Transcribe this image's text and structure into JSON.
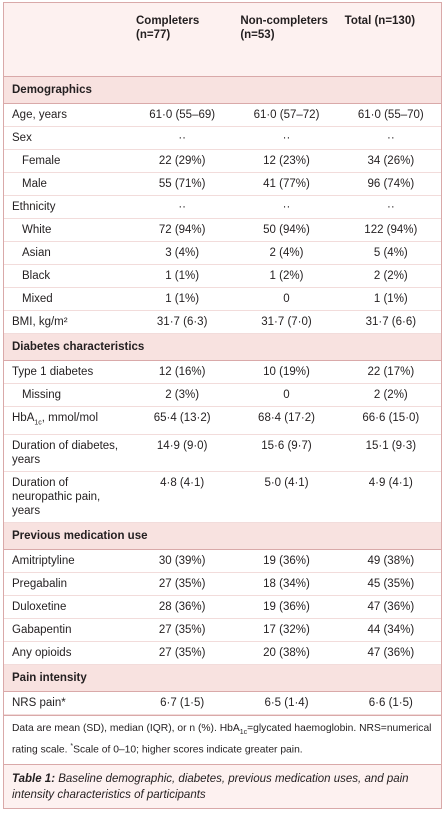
{
  "header": {
    "columns": [
      "Completers (n=77)",
      "Non-completers (n=53)",
      "Total (n=130)"
    ]
  },
  "table": {
    "sections": [
      {
        "title": "Demographics",
        "rows": [
          {
            "label": "Age, years",
            "values": [
              "61·0 (55–69)",
              "61·0 (57–72)",
              "61·0 (55–70)"
            ]
          },
          {
            "label": "Sex",
            "values": [
              "··",
              "··",
              "··"
            ]
          },
          {
            "label": "Female",
            "indent": true,
            "values": [
              "22 (29%)",
              "12 (23%)",
              "34 (26%)"
            ]
          },
          {
            "label": "Male",
            "indent": true,
            "values": [
              "55 (71%)",
              "41 (77%)",
              "96 (74%)"
            ]
          },
          {
            "label": "Ethnicity",
            "values": [
              "··",
              "··",
              "··"
            ]
          },
          {
            "label": "White",
            "indent": true,
            "values": [
              "72 (94%)",
              "50 (94%)",
              "122 (94%)"
            ]
          },
          {
            "label": "Asian",
            "indent": true,
            "values": [
              "3 (4%)",
              "2 (4%)",
              "5 (4%)"
            ]
          },
          {
            "label": "Black",
            "indent": true,
            "values": [
              "1 (1%)",
              "1 (2%)",
              "2 (2%)"
            ]
          },
          {
            "label": "Mixed",
            "indent": true,
            "values": [
              "1 (1%)",
              "0",
              "1 (1%)"
            ]
          },
          {
            "label": "BMI, kg/m²",
            "values": [
              "31·7 (6·3)",
              "31·7 (7·0)",
              "31·7 (6·6)"
            ]
          }
        ]
      },
      {
        "title": "Diabetes characteristics",
        "rows": [
          {
            "label": "Type 1 diabetes",
            "values": [
              "12 (16%)",
              "10 (19%)",
              "22 (17%)"
            ]
          },
          {
            "label": "Missing",
            "indent": true,
            "values": [
              "2 (3%)",
              "0",
              "2 (2%)"
            ]
          },
          {
            "label_parts": [
              {
                "text": "HbA"
              },
              {
                "text": "1c",
                "sub": true
              },
              {
                "text": ", mmol/mol"
              }
            ],
            "values": [
              "65·4 (13·2)",
              "68·4 (17·2)",
              "66·6 (15·0)"
            ]
          },
          {
            "label": "Duration of diabetes, years",
            "values": [
              "14·9 (9·0)",
              "15·6 (9·7)",
              "15·1 (9·3)"
            ]
          },
          {
            "label": "Duration of neuropathic pain, years",
            "values": [
              "4·8 (4·1)",
              "5·0 (4·1)",
              "4·9 (4·1)"
            ]
          }
        ]
      },
      {
        "title": "Previous medication use",
        "rows": [
          {
            "label": "Amitriptyline",
            "values": [
              "30 (39%)",
              "19 (36%)",
              "49 (38%)"
            ]
          },
          {
            "label": "Pregabalin",
            "values": [
              "27 (35%)",
              "18 (34%)",
              "45 (35%)"
            ]
          },
          {
            "label": "Duloxetine",
            "values": [
              "28 (36%)",
              "19 (36%)",
              "47 (36%)"
            ]
          },
          {
            "label": "Gabapentin",
            "values": [
              "27 (35%)",
              "17 (32%)",
              "44 (34%)"
            ]
          },
          {
            "label": "Any opioids",
            "values": [
              "27 (35%)",
              "20 (38%)",
              "47 (36%)"
            ]
          }
        ]
      },
      {
        "title": "Pain intensity",
        "rows": [
          {
            "label": "NRS pain*",
            "values": [
              "6·7 (1·5)",
              "6·5 (1·4)",
              "6·6 (1·5)"
            ]
          }
        ]
      }
    ]
  },
  "footnote": {
    "parts": [
      {
        "text": "Data are mean (SD), median (IQR), or n (%). HbA"
      },
      {
        "text": "1c",
        "sub": true
      },
      {
        "text": "=glycated haemoglobin. NRS=numerical rating scale. "
      },
      {
        "text": "*",
        "sup": true
      },
      {
        "text": "Scale of 0–10; higher scores indicate greater pain."
      }
    ]
  },
  "caption": {
    "label": "Table 1:",
    "text": "Baseline demographic, diabetes, previous medication uses, and pain intensity characteristics of participants"
  }
}
